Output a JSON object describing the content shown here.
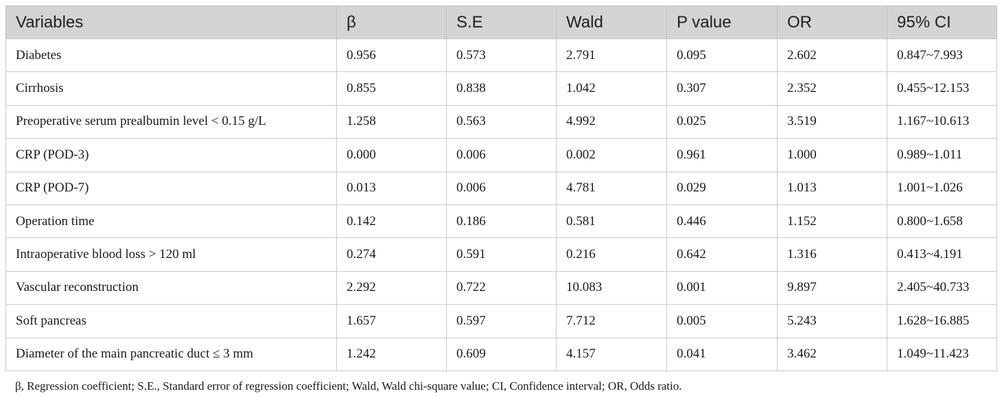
{
  "table": {
    "headers": [
      "Variables",
      "β",
      "S.E",
      "Wald",
      "P value",
      "OR",
      "95% CI"
    ],
    "rows": [
      [
        "Diabetes",
        "0.956",
        "0.573",
        "2.791",
        "0.095",
        "2.602",
        "0.847~7.993"
      ],
      [
        "Cirrhosis",
        "0.855",
        "0.838",
        "1.042",
        "0.307",
        "2.352",
        "0.455~12.153"
      ],
      [
        "Preoperative serum prealbumin level < 0.15 g/L",
        "1.258",
        "0.563",
        "4.992",
        "0.025",
        "3.519",
        "1.167~10.613"
      ],
      [
        "CRP (POD-3)",
        "0.000",
        "0.006",
        "0.002",
        "0.961",
        "1.000",
        "0.989~1.011"
      ],
      [
        "CRP (POD-7)",
        "0.013",
        "0.006",
        "4.781",
        "0.029",
        "1.013",
        "1.001~1.026"
      ],
      [
        "Operation time",
        "0.142",
        "0.186",
        "0.581",
        "0.446",
        "1.152",
        "0.800~1.658"
      ],
      [
        "Intraoperative blood loss > 120 ml",
        "0.274",
        "0.591",
        "0.216",
        "0.642",
        "1.316",
        "0.413~4.191"
      ],
      [
        "Vascular reconstruction",
        "2.292",
        "0.722",
        "10.083",
        "0.001",
        "9.897",
        "2.405~40.733"
      ],
      [
        "Soft pancreas",
        "1.657",
        "0.597",
        "7.712",
        "0.005",
        "5.243",
        "1.628~16.885"
      ],
      [
        "Diameter of the main pancreatic duct ≤ 3 mm",
        "1.242",
        "0.609",
        "4.157",
        "0.041",
        "3.462",
        "1.049~11.423"
      ]
    ]
  },
  "footnote": "β, Regression coefficient; S.E., Standard error of regression coefficient; Wald, Wald chi-square value; CI, Confidence interval; OR, Odds ratio."
}
